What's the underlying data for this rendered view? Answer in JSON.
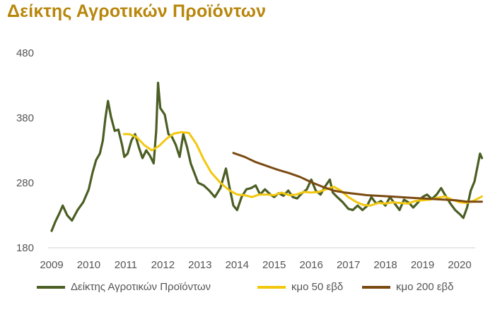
{
  "chart_data": {
    "type": "line",
    "title": "Δείκτης Αγροτικών Προϊόντων",
    "xlabel": "",
    "ylabel": "",
    "ylim": [
      180,
      480
    ],
    "y_ticks": [
      "180",
      "280",
      "380",
      "480"
    ],
    "x_ticks": [
      "2009",
      "2010",
      "2011",
      "2012",
      "2013",
      "2014",
      "2015",
      "2016",
      "2017",
      "2018",
      "2019",
      "2020"
    ],
    "grid": false,
    "legend_position": "bottom",
    "series": [
      {
        "name": "Δείκτης Αγροτικών Προϊόντων",
        "color": "#4B5E23",
        "points": [
          [
            2009.0,
            206
          ],
          [
            2009.1,
            220
          ],
          [
            2009.2,
            232
          ],
          [
            2009.3,
            245
          ],
          [
            2009.42,
            230
          ],
          [
            2009.55,
            222
          ],
          [
            2009.7,
            238
          ],
          [
            2009.85,
            250
          ],
          [
            2010.0,
            270
          ],
          [
            2010.1,
            295
          ],
          [
            2010.2,
            315
          ],
          [
            2010.3,
            325
          ],
          [
            2010.38,
            345
          ],
          [
            2010.45,
            380
          ],
          [
            2010.52,
            406
          ],
          [
            2010.6,
            382
          ],
          [
            2010.7,
            360
          ],
          [
            2010.8,
            362
          ],
          [
            2010.9,
            338
          ],
          [
            2010.96,
            320
          ],
          [
            2011.05,
            325
          ],
          [
            2011.15,
            345
          ],
          [
            2011.25,
            355
          ],
          [
            2011.35,
            335
          ],
          [
            2011.45,
            318
          ],
          [
            2011.55,
            330
          ],
          [
            2011.65,
            322
          ],
          [
            2011.75,
            310
          ],
          [
            2011.82,
            360
          ],
          [
            2011.87,
            434
          ],
          [
            2011.93,
            395
          ],
          [
            2012.05,
            385
          ],
          [
            2012.15,
            355
          ],
          [
            2012.25,
            350
          ],
          [
            2012.35,
            338
          ],
          [
            2012.45,
            320
          ],
          [
            2012.55,
            355
          ],
          [
            2012.65,
            335
          ],
          [
            2012.75,
            310
          ],
          [
            2012.85,
            295
          ],
          [
            2012.95,
            280
          ],
          [
            2013.1,
            276
          ],
          [
            2013.25,
            268
          ],
          [
            2013.4,
            258
          ],
          [
            2013.55,
            272
          ],
          [
            2013.7,
            302
          ],
          [
            2013.8,
            272
          ],
          [
            2013.9,
            245
          ],
          [
            2014.0,
            238
          ],
          [
            2014.12,
            258
          ],
          [
            2014.25,
            270
          ],
          [
            2014.38,
            272
          ],
          [
            2014.5,
            276
          ],
          [
            2014.62,
            262
          ],
          [
            2014.75,
            270
          ],
          [
            2014.9,
            262
          ],
          [
            2015.0,
            258
          ],
          [
            2015.12,
            264
          ],
          [
            2015.25,
            260
          ],
          [
            2015.38,
            268
          ],
          [
            2015.5,
            258
          ],
          [
            2015.62,
            256
          ],
          [
            2015.75,
            264
          ],
          [
            2015.88,
            270
          ],
          [
            2016.0,
            285
          ],
          [
            2016.12,
            268
          ],
          [
            2016.25,
            262
          ],
          [
            2016.38,
            275
          ],
          [
            2016.5,
            285
          ],
          [
            2016.58,
            265
          ],
          [
            2016.7,
            258
          ],
          [
            2016.85,
            250
          ],
          [
            2017.0,
            240
          ],
          [
            2017.12,
            238
          ],
          [
            2017.25,
            245
          ],
          [
            2017.38,
            238
          ],
          [
            2017.5,
            244
          ],
          [
            2017.62,
            258
          ],
          [
            2017.75,
            248
          ],
          [
            2017.88,
            252
          ],
          [
            2018.0,
            245
          ],
          [
            2018.12,
            258
          ],
          [
            2018.25,
            248
          ],
          [
            2018.38,
            238
          ],
          [
            2018.5,
            254
          ],
          [
            2018.62,
            250
          ],
          [
            2018.75,
            242
          ],
          [
            2018.88,
            250
          ],
          [
            2019.0,
            258
          ],
          [
            2019.12,
            262
          ],
          [
            2019.25,
            255
          ],
          [
            2019.38,
            262
          ],
          [
            2019.5,
            272
          ],
          [
            2019.62,
            260
          ],
          [
            2019.75,
            248
          ],
          [
            2019.88,
            238
          ],
          [
            2020.0,
            232
          ],
          [
            2020.1,
            226
          ],
          [
            2020.2,
            242
          ],
          [
            2020.3,
            268
          ],
          [
            2020.4,
            282
          ],
          [
            2020.48,
            305
          ],
          [
            2020.55,
            325
          ],
          [
            2020.6,
            318
          ]
        ]
      },
      {
        "name": "κμο 50 εβδ",
        "color": "#F2C80F",
        "points": [
          [
            2010.95,
            355
          ],
          [
            2011.1,
            355
          ],
          [
            2011.3,
            350
          ],
          [
            2011.5,
            338
          ],
          [
            2011.7,
            330
          ],
          [
            2011.9,
            337
          ],
          [
            2012.1,
            348
          ],
          [
            2012.3,
            356
          ],
          [
            2012.5,
            358
          ],
          [
            2012.7,
            357
          ],
          [
            2012.9,
            340
          ],
          [
            2013.1,
            316
          ],
          [
            2013.3,
            296
          ],
          [
            2013.55,
            280
          ],
          [
            2013.8,
            268
          ],
          [
            2014.0,
            262
          ],
          [
            2014.2,
            261
          ],
          [
            2014.4,
            258
          ],
          [
            2014.6,
            262
          ],
          [
            2014.8,
            262
          ],
          [
            2015.0,
            261
          ],
          [
            2015.2,
            265
          ],
          [
            2015.4,
            261
          ],
          [
            2015.6,
            262
          ],
          [
            2015.8,
            266
          ],
          [
            2016.0,
            265
          ],
          [
            2016.2,
            266
          ],
          [
            2016.4,
            270
          ],
          [
            2016.6,
            274
          ],
          [
            2016.8,
            268
          ],
          [
            2017.0,
            258
          ],
          [
            2017.2,
            251
          ],
          [
            2017.4,
            246
          ],
          [
            2017.6,
            245
          ],
          [
            2017.8,
            249
          ],
          [
            2018.0,
            248
          ],
          [
            2018.2,
            250
          ],
          [
            2018.4,
            249
          ],
          [
            2018.6,
            248
          ],
          [
            2018.8,
            252
          ],
          [
            2019.0,
            253
          ],
          [
            2019.2,
            254
          ],
          [
            2019.4,
            257
          ],
          [
            2019.6,
            259
          ],
          [
            2019.8,
            254
          ],
          [
            2020.0,
            250
          ],
          [
            2020.2,
            249
          ],
          [
            2020.4,
            253
          ],
          [
            2020.6,
            259
          ]
        ]
      },
      {
        "name": "κμο 200 εβδ",
        "color": "#7B4A12",
        "points": [
          [
            2013.9,
            326
          ],
          [
            2014.2,
            320
          ],
          [
            2014.5,
            312
          ],
          [
            2014.8,
            306
          ],
          [
            2015.1,
            300
          ],
          [
            2015.4,
            295
          ],
          [
            2015.7,
            289
          ],
          [
            2016.0,
            281
          ],
          [
            2016.3,
            274
          ],
          [
            2016.6,
            268
          ],
          [
            2016.9,
            265
          ],
          [
            2017.2,
            263
          ],
          [
            2017.5,
            261
          ],
          [
            2017.8,
            260
          ],
          [
            2018.1,
            259
          ],
          [
            2018.4,
            258
          ],
          [
            2018.7,
            257
          ],
          [
            2019.0,
            256
          ],
          [
            2019.3,
            255
          ],
          [
            2019.6,
            254
          ],
          [
            2019.9,
            253
          ],
          [
            2020.2,
            251
          ],
          [
            2020.6,
            251
          ]
        ]
      }
    ]
  }
}
